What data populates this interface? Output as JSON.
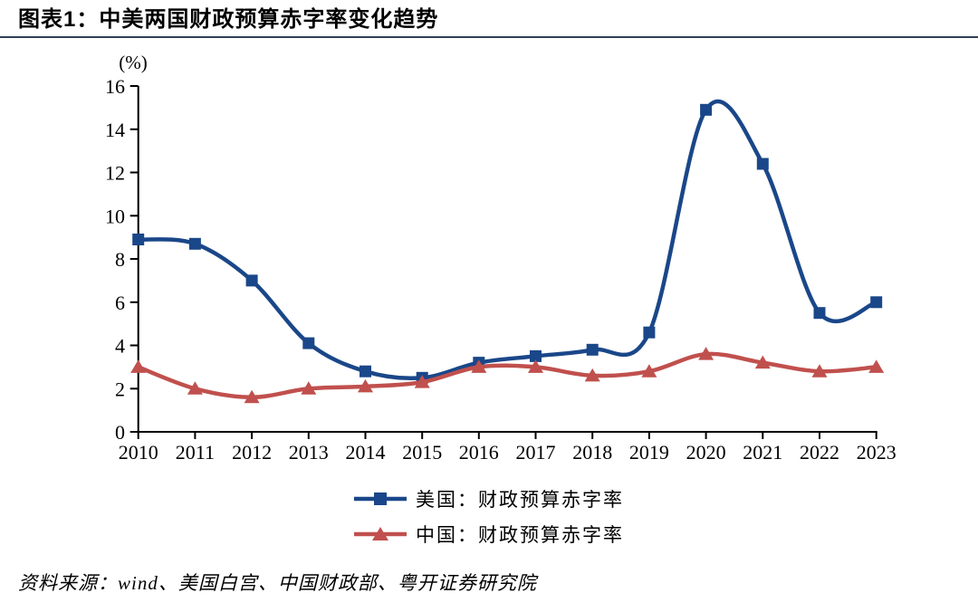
{
  "header": {
    "title": "图表1：中美两国财政预算赤字率变化趋势"
  },
  "chart_data": {
    "type": "line",
    "title": "中美两国财政预算赤字率变化趋势",
    "unit_label": "(%)",
    "smooth": true,
    "grid": false,
    "legend_position": "bottom",
    "categories": [
      "2010",
      "2011",
      "2012",
      "2013",
      "2014",
      "2015",
      "2016",
      "2017",
      "2018",
      "2019",
      "2020",
      "2021",
      "2022",
      "2023"
    ],
    "series": [
      {
        "name": "美国：财政预算赤字率",
        "marker": "square",
        "color": "#1A4789",
        "values": [
          8.9,
          8.7,
          7.0,
          4.1,
          2.8,
          2.5,
          3.2,
          3.5,
          3.8,
          4.6,
          14.9,
          12.4,
          5.5,
          6.0
        ]
      },
      {
        "name": "中国：财政预算赤字率",
        "marker": "triangle",
        "color": "#C0504D",
        "values": [
          3.0,
          2.0,
          1.6,
          2.0,
          2.1,
          2.3,
          3.0,
          3.0,
          2.6,
          2.8,
          3.6,
          3.2,
          2.8,
          3.0
        ]
      }
    ],
    "ylim": [
      0,
      16
    ],
    "ytick_step": 2,
    "axis_color": "#000000"
  },
  "footer": {
    "source": "资料来源：wind、美国白宫、中国财政部、粤开证券研究院"
  }
}
